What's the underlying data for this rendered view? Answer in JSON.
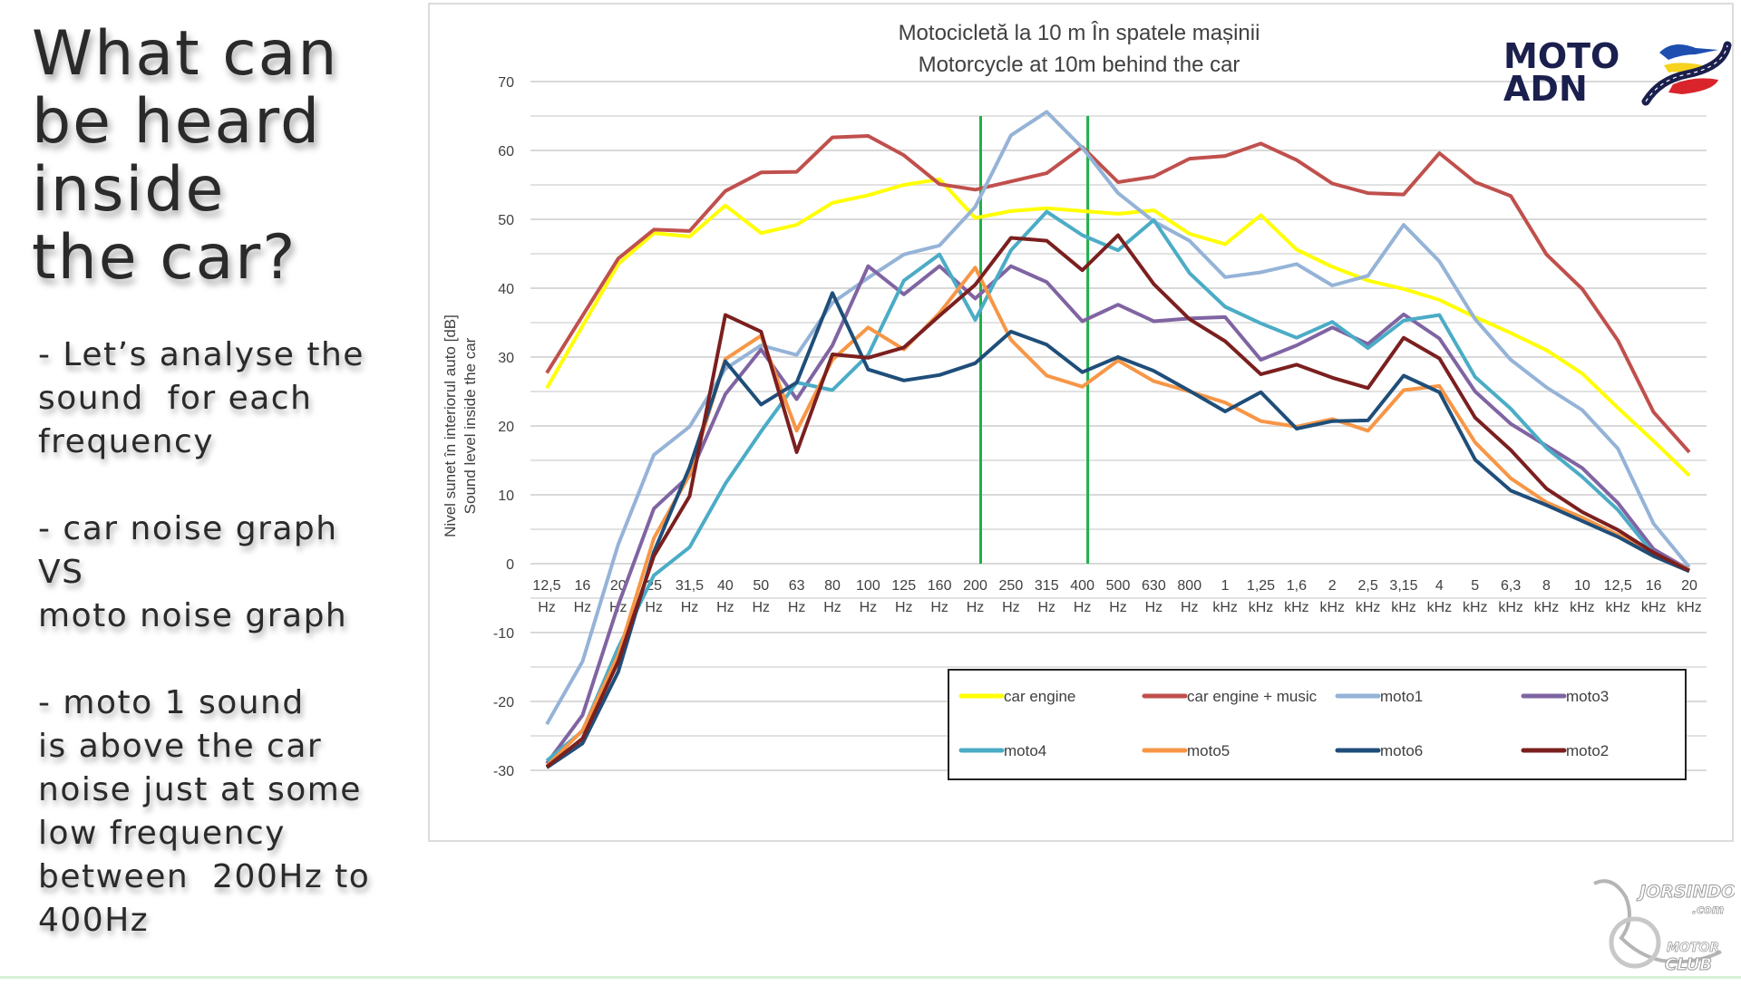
{
  "slide": {
    "title_lines": [
      "What can",
      "be heard",
      "inside",
      "the car?"
    ],
    "bullets": [
      [
        "- Let’s analyse the",
        "sound  for each",
        "frequency"
      ],
      [
        "- car noise graph",
        "VS",
        "moto noise graph"
      ],
      [
        "- moto 1 sound",
        "is above the car",
        "noise just at some",
        "low frequency",
        "between  200Hz to",
        "400Hz"
      ]
    ]
  },
  "logos": {
    "top_right": {
      "line1": "MOTO",
      "line2": "ADN",
      "text_color": "#1a1f4d",
      "stripe_colors": [
        "#1e4fb0",
        "#f7d21e",
        "#d9242b"
      ]
    },
    "bottom_right": {
      "line1": "JORSINDO",
      "line2": ".com",
      "line3": "MOTOR",
      "line4": "CLUB"
    }
  },
  "chart_data": {
    "type": "line",
    "title": "Motocicletă la 10 m În spatele mașinii",
    "subtitle": "Motorcycle at 10m behind the car",
    "ylabel_ro": "Nivel sunet în interiorul auto [dB]",
    "ylabel_en": "Sound level inside the car",
    "xlabel": "",
    "ylim": [
      -30,
      70
    ],
    "yticks": [
      -30,
      -20,
      -10,
      0,
      10,
      20,
      30,
      40,
      50,
      60,
      70
    ],
    "grid": true,
    "minor_grid_step": 5,
    "legend_position": "bottom-right-inside",
    "categories": [
      [
        "12,5",
        "Hz"
      ],
      [
        "16",
        "Hz"
      ],
      [
        "20",
        "Hz"
      ],
      [
        "25",
        "Hz"
      ],
      [
        "31,5",
        "Hz"
      ],
      [
        "40",
        "Hz"
      ],
      [
        "50",
        "Hz"
      ],
      [
        "63",
        "Hz"
      ],
      [
        "80",
        "Hz"
      ],
      [
        "100",
        "Hz"
      ],
      [
        "125",
        "Hz"
      ],
      [
        "160",
        "Hz"
      ],
      [
        "200",
        "Hz"
      ],
      [
        "250",
        "Hz"
      ],
      [
        "315",
        "Hz"
      ],
      [
        "400",
        "Hz"
      ],
      [
        "500",
        "Hz"
      ],
      [
        "630",
        "Hz"
      ],
      [
        "800",
        "Hz"
      ],
      [
        "1",
        "kHz"
      ],
      [
        "1,25",
        "kHz"
      ],
      [
        "1,6",
        "kHz"
      ],
      [
        "2",
        "kHz"
      ],
      [
        "2,5",
        "kHz"
      ],
      [
        "3,15",
        "kHz"
      ],
      [
        "4",
        "kHz"
      ],
      [
        "5",
        "kHz"
      ],
      [
        "6,3",
        "kHz"
      ],
      [
        "8",
        "kHz"
      ],
      [
        "10",
        "kHz"
      ],
      [
        "12,5",
        "kHz"
      ],
      [
        "16",
        "kHz"
      ],
      [
        "20",
        "kHz"
      ]
    ],
    "reference_lines": [
      {
        "category": "200 Hz",
        "color": "#1eb04a",
        "top_value": 65
      },
      {
        "category": "400 Hz",
        "color": "#1eb04a",
        "top_value": 65
      }
    ],
    "series": [
      {
        "name": "car engine",
        "color": "#ffff00",
        "values": [
          25.5,
          34.5,
          43.5,
          48,
          47.5,
          52,
          48,
          49.2,
          52.4,
          53.5,
          55,
          55.8,
          50.2,
          51.2,
          51.6,
          51.2,
          50.8,
          51.3,
          47.9,
          46.4,
          50.6,
          45.6,
          43.1,
          41.1,
          39.9,
          38.3,
          35.8,
          33.5,
          31,
          27.6,
          22.6,
          17.8,
          12.8
        ]
      },
      {
        "name": "car engine + music",
        "color": "#c0504d",
        "values": [
          27.7,
          36,
          44.3,
          48.5,
          48.3,
          54.1,
          56.8,
          56.9,
          61.9,
          62.1,
          59.3,
          55.1,
          54.3,
          55.5,
          56.7,
          60.5,
          55.4,
          56.2,
          58.8,
          59.2,
          61,
          58.6,
          55.2,
          53.8,
          53.6,
          59.6,
          55.4,
          53.4,
          44.9,
          39.9,
          32.4,
          22,
          16.2
        ]
      },
      {
        "name": "moto1",
        "color": "#95b3d7",
        "values": [
          -23.3,
          -14.2,
          2.8,
          15.8,
          19.9,
          28.3,
          31.7,
          30.3,
          37.9,
          41.5,
          44.9,
          46.2,
          51.8,
          62.2,
          65.6,
          60.4,
          53.8,
          49.7,
          46.9,
          41.6,
          42.3,
          43.5,
          40.4,
          41.8,
          49.2,
          43.9,
          35.5,
          29.6,
          25.6,
          22.3,
          16.7,
          5.8,
          -0.5
        ]
      },
      {
        "name": "moto3",
        "color": "#8064a2",
        "values": [
          -29,
          -22,
          -6,
          8,
          12.8,
          24.6,
          31.1,
          23.9,
          31.7,
          43.2,
          39.1,
          43.2,
          38.5,
          43.2,
          40.9,
          35.2,
          37.6,
          35.2,
          35.6,
          35.8,
          29.6,
          31.7,
          34.3,
          31.9,
          36.2,
          32.7,
          25,
          20.3,
          17.1,
          13.9,
          8.8,
          2.1,
          -0.9
        ]
      },
      {
        "name": "moto4",
        "color": "#4bacc6",
        "values": [
          -28.6,
          -24.3,
          -12.2,
          -1.7,
          2.4,
          11.6,
          19.2,
          26.3,
          25.2,
          30.3,
          41.1,
          44.9,
          35.4,
          45.5,
          51.1,
          47.7,
          45.5,
          49.9,
          42.2,
          37.3,
          34.9,
          32.8,
          35.1,
          31.3,
          35.3,
          36.1,
          27.1,
          22.5,
          16.8,
          12.6,
          7.8,
          1.4,
          -0.9
        ]
      },
      {
        "name": "moto5",
        "color": "#f79646",
        "values": [
          -29.4,
          -24.2,
          -13.3,
          3.7,
          12.9,
          29.7,
          33.1,
          19.3,
          29.6,
          34.3,
          31.1,
          36.4,
          43,
          32.5,
          27.3,
          25.7,
          29.5,
          26.5,
          25,
          23.4,
          20.7,
          19.9,
          21,
          19.3,
          25.2,
          25.8,
          17.6,
          12.4,
          8.9,
          6.7,
          4.2,
          1.5,
          -0.9
        ]
      },
      {
        "name": "moto6",
        "color": "#1f4e79",
        "values": [
          -29.6,
          -26.1,
          -15.7,
          1.7,
          14,
          29.4,
          23.1,
          26.3,
          39.3,
          28.2,
          26.6,
          27.4,
          29.1,
          33.7,
          31.8,
          27.8,
          30,
          28,
          25.1,
          22.1,
          24.9,
          19.6,
          20.7,
          20.8,
          27.3,
          24.9,
          15.1,
          10.6,
          8.5,
          6.2,
          3.9,
          1.1,
          -1.1
        ]
      },
      {
        "name": "moto2",
        "color": "#7b1f1f",
        "values": [
          -29.5,
          -25.4,
          -14.2,
          1.1,
          9.8,
          36.1,
          33.7,
          16.2,
          30.4,
          29.9,
          31.4,
          36,
          40.5,
          47.3,
          46.9,
          42.6,
          47.7,
          40.6,
          35.5,
          32.3,
          27.5,
          28.9,
          27,
          25.5,
          32.8,
          29.8,
          21.2,
          16.5,
          10.9,
          7.5,
          4.9,
          1.6,
          -1
        ]
      }
    ],
    "legend": {
      "rows": [
        [
          "car engine",
          "car engine + music",
          "moto1",
          "moto3"
        ],
        [
          "moto4",
          "moto5",
          "moto6",
          "moto2"
        ]
      ]
    }
  }
}
